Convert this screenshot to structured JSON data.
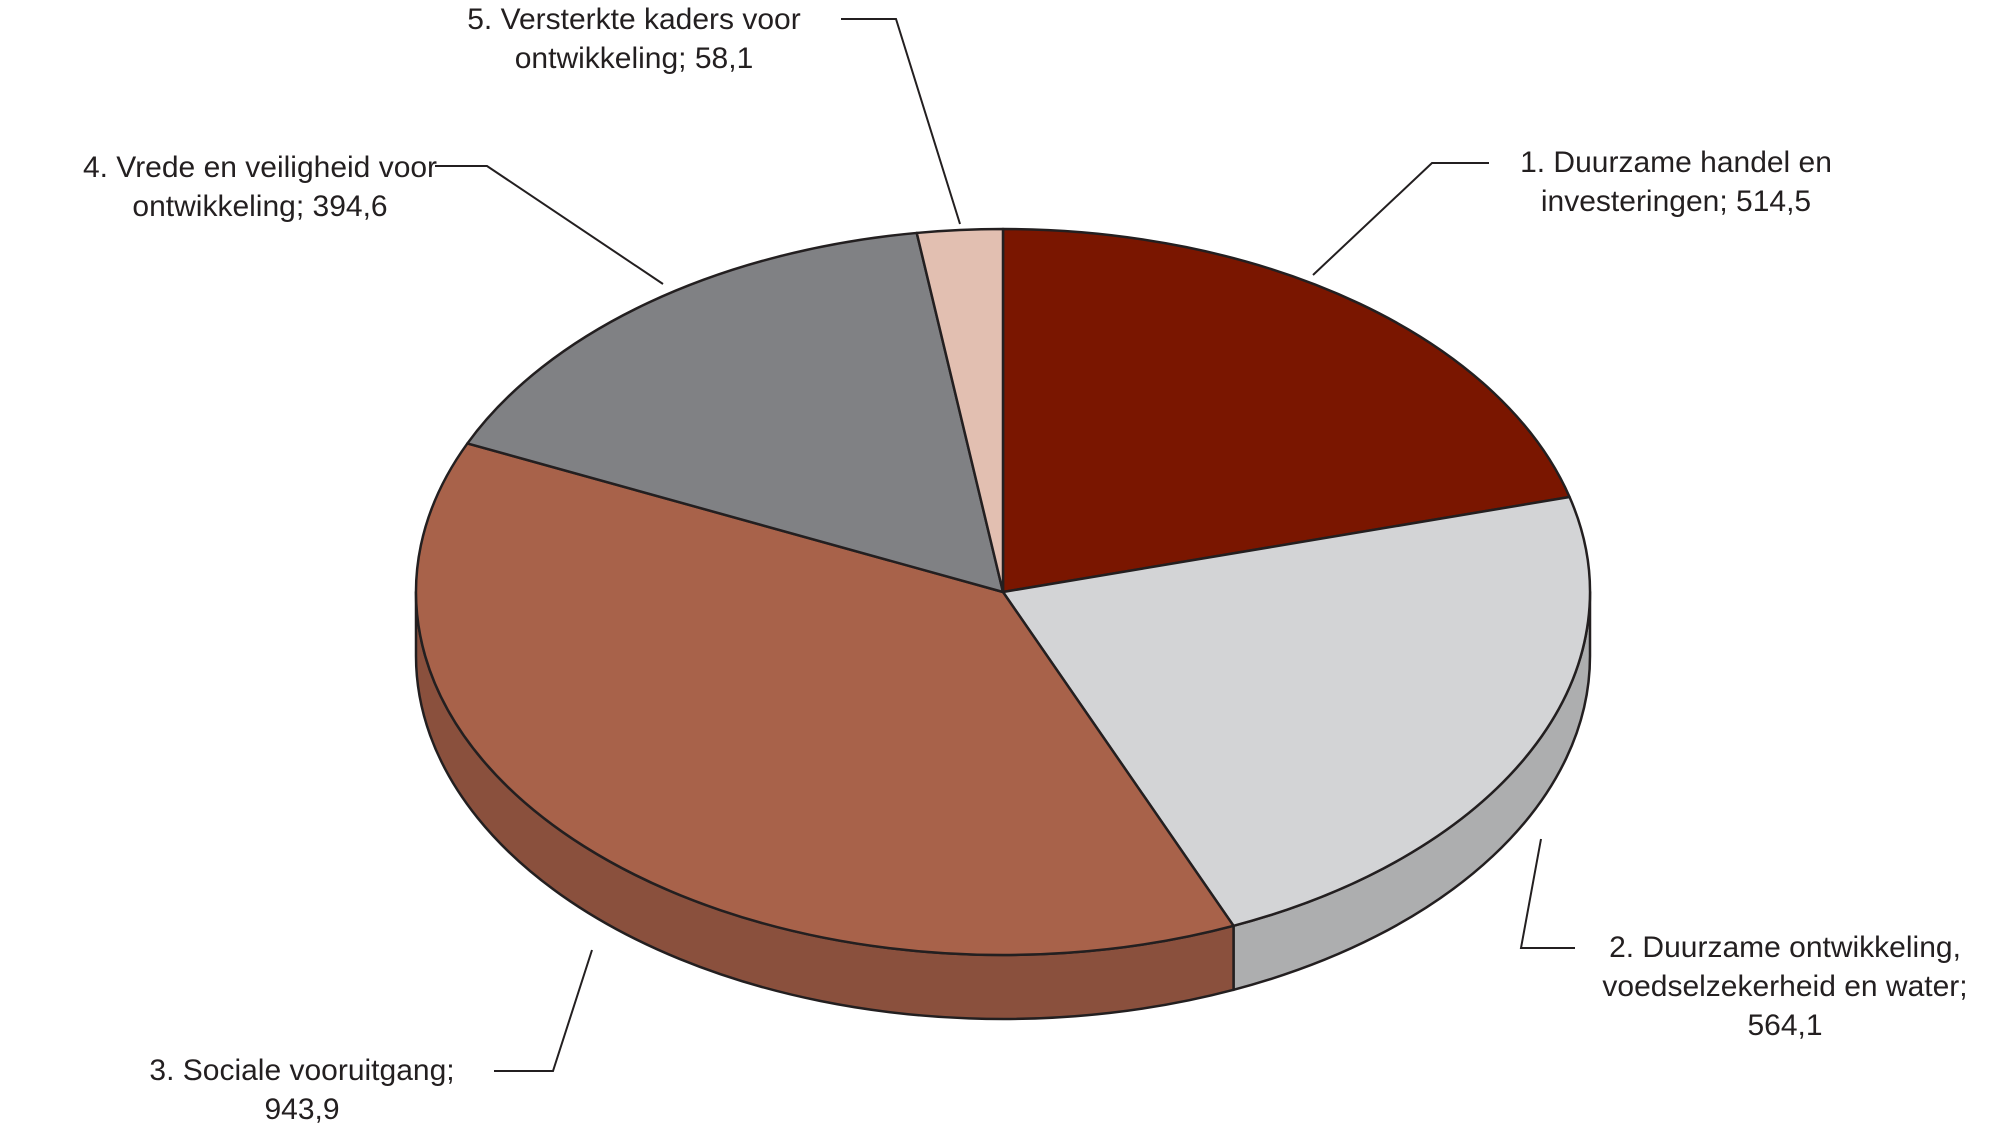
{
  "chart_data": {
    "type": "pie",
    "categories": [
      "1. Duurzame handel en investeringen;",
      "2. Duurzame ontwikkeling, voedselzekerheid en water;",
      "3. Sociale vooruitgang;",
      "4. Vrede en veiligheid voor ontwikkeling;",
      "5. Versterkte kaders voor ontwikkeling;"
    ],
    "values": [
      514.5,
      564.1,
      943.9,
      394.6,
      58.1
    ],
    "value_labels": [
      "514,5",
      "564,1",
      "943,9",
      "394,6",
      "58,1"
    ],
    "colors": [
      "#7a1600",
      "#d3d4d6",
      "#a8624a",
      "#808184",
      "#e2bfb1"
    ]
  }
}
